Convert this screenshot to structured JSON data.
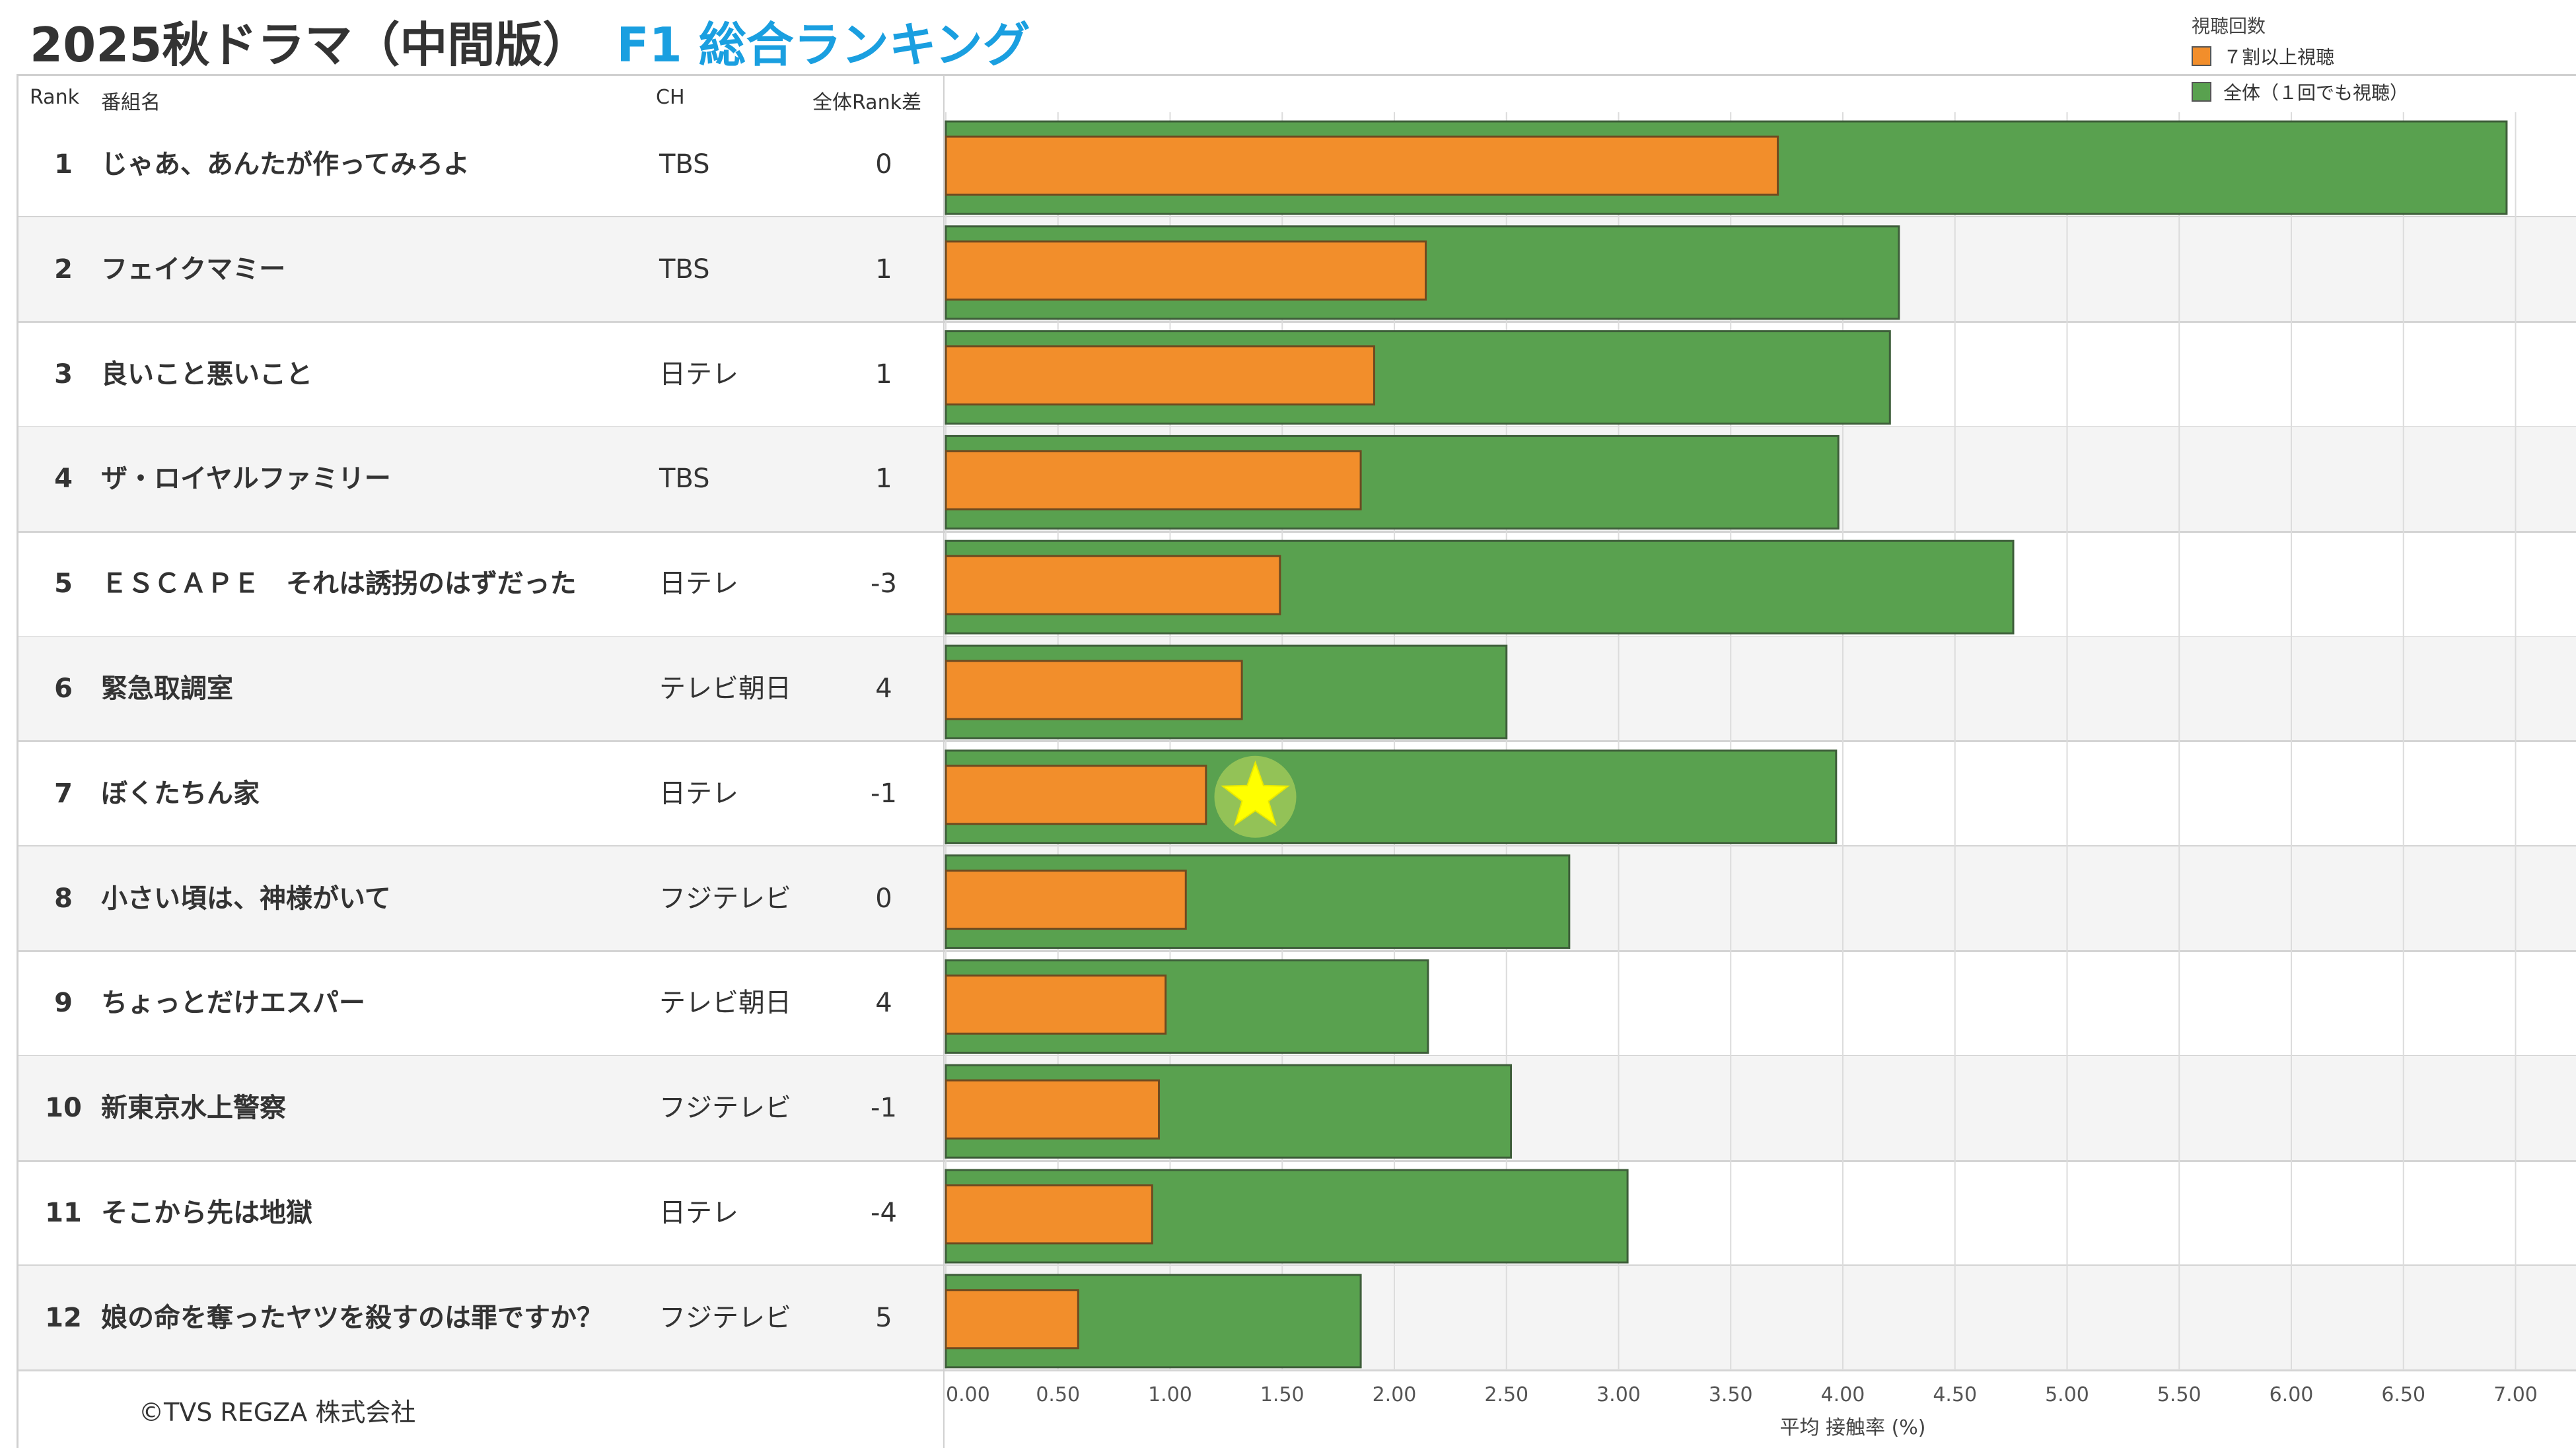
{
  "title": {
    "main": "2025秋ドラマ（中間版）",
    "accent": "F1 総合ランキング"
  },
  "legend": {
    "title": "視聴回数",
    "items": [
      {
        "label": "７割以上視聴",
        "color": "#f28e2b"
      },
      {
        "label": "全体（１回でも視聴）",
        "color": "#59a14f"
      }
    ]
  },
  "columns": {
    "rank": "Rank",
    "name": "番組名",
    "ch": "CH",
    "diff": "全体Rank差"
  },
  "rows": [
    {
      "rank": "1",
      "name": "じゃあ、あんたが作ってみろよ",
      "ch": "TBS",
      "diff": "0"
    },
    {
      "rank": "2",
      "name": "フェイクマミー",
      "ch": "TBS",
      "diff": "1"
    },
    {
      "rank": "3",
      "name": "良いこと悪いこと",
      "ch": "日テレ",
      "diff": "1"
    },
    {
      "rank": "4",
      "name": "ザ・ロイヤルファミリー",
      "ch": "TBS",
      "diff": "1"
    },
    {
      "rank": "5",
      "name": "ＥＳＣＡＰＥ　それは誘拐のはずだった",
      "ch": "日テレ",
      "diff": "-3"
    },
    {
      "rank": "6",
      "name": "緊急取調室",
      "ch": "テレビ朝日",
      "diff": "4"
    },
    {
      "rank": "7",
      "name": "ぼくたちん家",
      "ch": "日テレ",
      "diff": "-1"
    },
    {
      "rank": "8",
      "name": "小さい頃は、神様がいて",
      "ch": "フジテレビ",
      "diff": "0"
    },
    {
      "rank": "9",
      "name": "ちょっとだけエスパー",
      "ch": "テレビ朝日",
      "diff": "4"
    },
    {
      "rank": "10",
      "name": "新東京水上警察",
      "ch": "フジテレビ",
      "diff": "-1"
    },
    {
      "rank": "11",
      "name": "そこから先は地獄",
      "ch": "日テレ",
      "diff": "-4"
    },
    {
      "rank": "12",
      "name": "娘の命を奪ったヤツを殺すのは罪ですか？",
      "ch": "フジテレビ",
      "diff": "5"
    }
  ],
  "chart_data": {
    "type": "bar",
    "orientation": "horizontal",
    "categories": [
      "じゃあ、あんたが作ってみろよ",
      "フェイクマミー",
      "良いこと悪いこと",
      "ザ・ロイヤルファミリー",
      "ＥＳＣＡＰＥ　それは誘拐のはずだった",
      "緊急取調室",
      "ぼくたちん家",
      "小さい頃は、神様がいて",
      "ちょっとだけエスパー",
      "新東京水上警察",
      "そこから先は地獄",
      "娘の命を奪ったヤツを殺すのは罪ですか？"
    ],
    "series": [
      {
        "name": "全体（１回でも視聴）",
        "color": "#59a14f",
        "values": [
          6.96,
          4.25,
          4.21,
          3.98,
          4.76,
          2.5,
          3.97,
          2.78,
          2.15,
          2.52,
          3.04,
          1.85
        ]
      },
      {
        "name": "７割以上視聴",
        "color": "#f28e2b",
        "values": [
          3.71,
          2.14,
          1.91,
          1.85,
          1.49,
          1.32,
          1.16,
          1.07,
          0.98,
          0.95,
          0.92,
          0.59
        ]
      }
    ],
    "xlabel": "平均 接触率 (%)",
    "xlim": [
      0,
      7.0
    ],
    "xticks": [
      "0.00",
      "0.50",
      "1.00",
      "1.50",
      "2.00",
      "2.50",
      "3.00",
      "3.50",
      "4.00",
      "4.50",
      "5.00",
      "5.50",
      "6.00",
      "6.50",
      "7.00"
    ],
    "grid": true,
    "legend": "top-right",
    "annotation": {
      "type": "star",
      "category_index": 6,
      "x": 1.38,
      "color": "#ffff00"
    }
  },
  "copyright": "©TVS REGZA 株式会社"
}
